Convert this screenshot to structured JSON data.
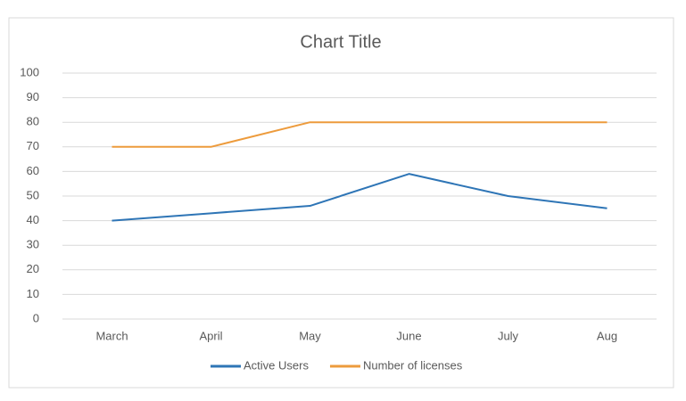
{
  "chart_data": {
    "type": "line",
    "title": "Chart Title",
    "categories": [
      "March",
      "April",
      "May",
      "June",
      "July",
      "Aug"
    ],
    "series": [
      {
        "name": "Active Users",
        "color": "#2e75b6",
        "values": [
          40,
          43,
          46,
          59,
          50,
          45
        ]
      },
      {
        "name": "Number of licenses",
        "color": "#ed9b3c",
        "values": [
          70,
          70,
          80,
          80,
          80,
          80
        ]
      }
    ],
    "ylim": [
      0,
      100
    ],
    "yticks": [
      0,
      10,
      20,
      30,
      40,
      50,
      60,
      70,
      80,
      90,
      100
    ],
    "grid": true,
    "legend": "bottom"
  }
}
